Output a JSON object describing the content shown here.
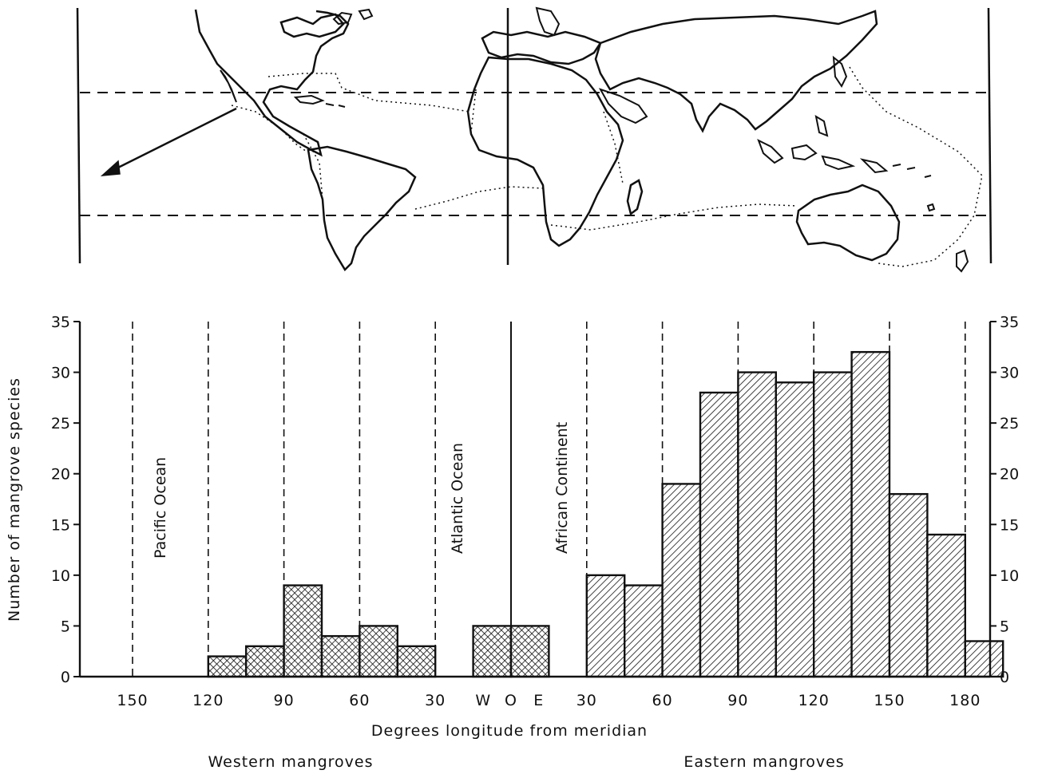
{
  "chart_data": {
    "type": "bar",
    "title": "",
    "xlabel": "Degrees longitude from meridian",
    "ylabel": "Number of mangrove species",
    "ylim": [
      0,
      35
    ],
    "yticks": [
      0,
      5,
      10,
      15,
      20,
      25,
      30,
      35
    ],
    "x_tick_labels": [
      "150",
      "120",
      "90",
      "60",
      "30",
      "W",
      "O",
      "E",
      "30",
      "60",
      "90",
      "120",
      "150",
      "180"
    ],
    "region_labels": [
      "Pacific Ocean",
      "Atlantic Ocean",
      "African Continent"
    ],
    "group_labels": [
      "Western mangroves",
      "Eastern mangroves"
    ],
    "series": [
      {
        "name": "Western mangroves",
        "hatch": "cross",
        "bins": [
          {
            "from": -120,
            "to": -105,
            "value": 2
          },
          {
            "from": -105,
            "to": -90,
            "value": 3
          },
          {
            "from": -90,
            "to": -75,
            "value": 9
          },
          {
            "from": -75,
            "to": -60,
            "value": 4
          },
          {
            "from": -60,
            "to": -45,
            "value": 5
          },
          {
            "from": -45,
            "to": -30,
            "value": 3
          },
          {
            "from": -15,
            "to": 0,
            "value": 5
          },
          {
            "from": 0,
            "to": 15,
            "value": 5
          }
        ]
      },
      {
        "name": "Eastern mangroves",
        "hatch": "diagonal",
        "bins": [
          {
            "from": 30,
            "to": 45,
            "value": 10
          },
          {
            "from": 45,
            "to": 60,
            "value": 9
          },
          {
            "from": 60,
            "to": 75,
            "value": 19
          },
          {
            "from": 75,
            "to": 90,
            "value": 28
          },
          {
            "from": 90,
            "to": 105,
            "value": 30
          },
          {
            "from": 105,
            "to": 120,
            "value": 29
          },
          {
            "from": 120,
            "to": 135,
            "value": 30
          },
          {
            "from": 135,
            "to": 150,
            "value": 32
          },
          {
            "from": 150,
            "to": 165,
            "value": 18
          },
          {
            "from": 165,
            "to": 180,
            "value": 14
          },
          {
            "from": 180,
            "to": 195,
            "value": 3.5
          }
        ]
      }
    ],
    "dashed_meridians": [
      -150,
      -120,
      -90,
      -60,
      -30,
      30,
      60,
      90,
      120,
      150,
      180
    ],
    "solid_meridian": 0,
    "map_latitude_lines": [
      30,
      -30
    ]
  }
}
